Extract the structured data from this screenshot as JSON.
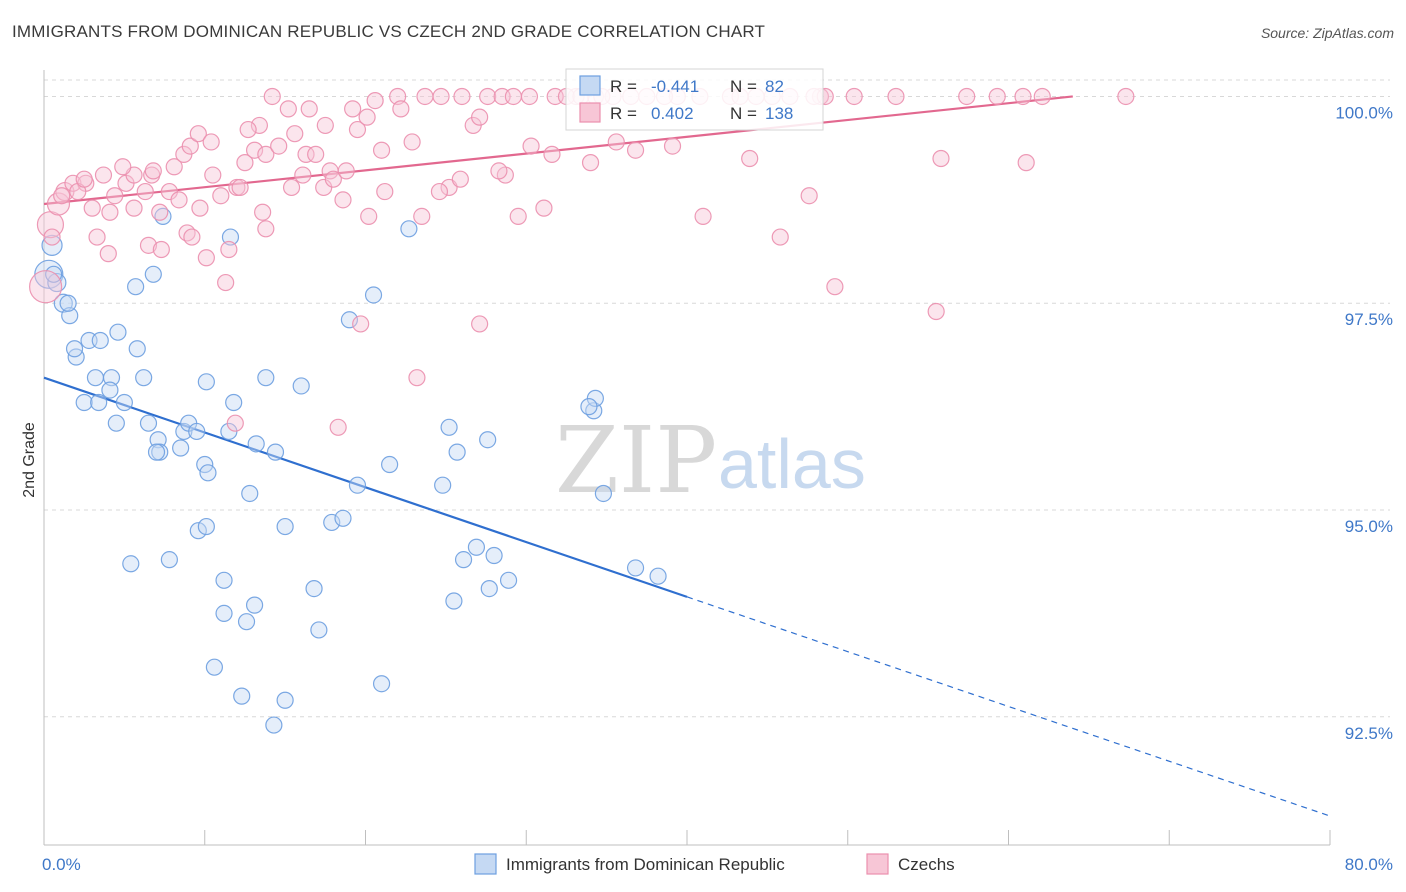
{
  "header": {
    "title": "IMMIGRANTS FROM DOMINICAN REPUBLIC VS CZECH 2ND GRADE CORRELATION CHART",
    "source": "Source: ZipAtlas.com"
  },
  "watermark": {
    "zip": "ZIP",
    "atlas": "atlas"
  },
  "chart_data": {
    "type": "scatter",
    "title": "IMMIGRANTS FROM DOMINICAN REPUBLIC VS CZECH 2ND GRADE CORRELATION CHART",
    "xlabel": "",
    "ylabel": "2nd Grade",
    "xlim": [
      0,
      80
    ],
    "ylim": [
      90.95,
      100.32
    ],
    "x_tick_labels": [
      {
        "value": 0,
        "label": "0.0%"
      },
      {
        "value": 80,
        "label": "80.0%"
      }
    ],
    "y_tick_labels": [
      {
        "value": 100,
        "label": "100.0%"
      },
      {
        "value": 97.5,
        "label": "97.5%"
      },
      {
        "value": 95,
        "label": "95.0%"
      },
      {
        "value": 92.5,
        "label": "92.5%"
      }
    ],
    "grid": true,
    "legend_position": "bottom",
    "stats_box_position": "top-center",
    "series": [
      {
        "name": "Immigrants from Dominican Republic",
        "color": "#6d9fe0",
        "fill": "#c5d9f3",
        "trend_color": "#2f6fcf",
        "R": "-0.441",
        "N": "82",
        "R_label": "R =",
        "N_label": "N =",
        "trend": {
          "x0": 0,
          "y0": 96.6,
          "x1": 40,
          "y1": 93.95,
          "dashed_to_x": 80,
          "dashed_to_y": 91.3
        },
        "points": [
          [
            0.3,
            97.85,
            14
          ],
          [
            0.5,
            98.2,
            10
          ],
          [
            0.8,
            97.75,
            9
          ],
          [
            1.2,
            97.5,
            9
          ],
          [
            1.6,
            97.35,
            8
          ],
          [
            2.8,
            97.05,
            8
          ],
          [
            3.5,
            97.05,
            8
          ],
          [
            4.6,
            97.15,
            8
          ],
          [
            5.8,
            96.95,
            8
          ],
          [
            6.2,
            96.6,
            8
          ],
          [
            3.2,
            96.6,
            8
          ],
          [
            4.2,
            96.6,
            8
          ],
          [
            5.0,
            96.3,
            8
          ],
          [
            2.5,
            96.3,
            8
          ],
          [
            3.4,
            96.3,
            8
          ],
          [
            4.5,
            96.05,
            8
          ],
          [
            6.5,
            96.05,
            8
          ],
          [
            7.1,
            95.85,
            8
          ],
          [
            7.2,
            95.7,
            8
          ],
          [
            8.5,
            95.75,
            8
          ],
          [
            8.7,
            95.95,
            8
          ],
          [
            9.0,
            96.05,
            8
          ],
          [
            10.1,
            96.55,
            8
          ],
          [
            11.8,
            96.3,
            8
          ],
          [
            13.8,
            96.6,
            8
          ],
          [
            16.0,
            96.5,
            8
          ],
          [
            9.5,
            95.95,
            8
          ],
          [
            10.0,
            95.55,
            8
          ],
          [
            10.2,
            95.45,
            8
          ],
          [
            11.5,
            95.95,
            8
          ],
          [
            13.2,
            95.8,
            8
          ],
          [
            14.4,
            95.7,
            8
          ],
          [
            12.8,
            95.2,
            8
          ],
          [
            19.5,
            95.3,
            8
          ],
          [
            21.5,
            95.55,
            8
          ],
          [
            25.2,
            96.0,
            8
          ],
          [
            25.7,
            95.7,
            8
          ],
          [
            27.6,
            95.85,
            8
          ],
          [
            24.8,
            95.3,
            8
          ],
          [
            34.2,
            96.2,
            8
          ],
          [
            34.3,
            96.35,
            8
          ],
          [
            34.8,
            95.2,
            8
          ],
          [
            5.4,
            94.35,
            8
          ],
          [
            7.8,
            94.4,
            8
          ],
          [
            9.6,
            94.75,
            8
          ],
          [
            10.1,
            94.8,
            8
          ],
          [
            11.2,
            94.15,
            8
          ],
          [
            15.0,
            94.8,
            8
          ],
          [
            16.8,
            94.05,
            8
          ],
          [
            17.9,
            94.85,
            8
          ],
          [
            18.6,
            94.9,
            8
          ],
          [
            26.1,
            94.4,
            8
          ],
          [
            26.9,
            94.55,
            8
          ],
          [
            28.0,
            94.45,
            8
          ],
          [
            28.9,
            94.15,
            8
          ],
          [
            27.7,
            94.05,
            8
          ],
          [
            25.5,
            93.9,
            8
          ],
          [
            11.2,
            93.75,
            8
          ],
          [
            12.6,
            93.65,
            8
          ],
          [
            13.1,
            93.85,
            8
          ],
          [
            17.1,
            93.55,
            8
          ],
          [
            10.6,
            93.1,
            8
          ],
          [
            12.3,
            92.75,
            8
          ],
          [
            15.0,
            92.7,
            8
          ],
          [
            21.0,
            92.9,
            8
          ],
          [
            14.3,
            92.4,
            8
          ],
          [
            36.8,
            94.3,
            8
          ],
          [
            38.2,
            94.2,
            8
          ],
          [
            0.6,
            97.85,
            8
          ],
          [
            1.5,
            97.5,
            8
          ],
          [
            6.8,
            97.85,
            8
          ],
          [
            7.4,
            98.55,
            8
          ],
          [
            11.6,
            98.3,
            8
          ],
          [
            19.0,
            97.3,
            8
          ],
          [
            20.5,
            97.6,
            8
          ],
          [
            22.7,
            98.4,
            8
          ],
          [
            5.7,
            97.7,
            8
          ],
          [
            2.0,
            96.85,
            8
          ],
          [
            1.9,
            96.95,
            8
          ],
          [
            4.1,
            96.45,
            8
          ],
          [
            7.0,
            95.7,
            8
          ],
          [
            33.9,
            96.25,
            8
          ]
        ]
      },
      {
        "name": "Czechs",
        "color": "#eb8fae",
        "fill": "#f7c6d6",
        "trend_color": "#e2688f",
        "R": "0.402",
        "N": "138",
        "R_label": "R =",
        "N_label": "N =",
        "trend": {
          "x0": 0,
          "y0": 98.7,
          "x1": 64,
          "y1": 100.0
        },
        "points": [
          [
            0.1,
            97.7,
            16
          ],
          [
            0.4,
            98.45,
            13
          ],
          [
            0.9,
            98.7,
            11
          ],
          [
            1.3,
            98.85,
            9
          ],
          [
            1.8,
            98.95,
            8
          ],
          [
            2.6,
            98.95,
            8
          ],
          [
            3.7,
            99.05,
            8
          ],
          [
            4.4,
            98.8,
            8
          ],
          [
            4.1,
            98.6,
            8
          ],
          [
            3.3,
            98.3,
            8
          ],
          [
            4.0,
            98.1,
            8
          ],
          [
            5.1,
            98.95,
            8
          ],
          [
            5.6,
            99.05,
            8
          ],
          [
            6.3,
            98.85,
            8
          ],
          [
            6.7,
            99.05,
            8
          ],
          [
            6.5,
            98.2,
            8
          ],
          [
            7.2,
            98.6,
            8
          ],
          [
            7.8,
            98.85,
            8
          ],
          [
            8.1,
            99.15,
            8
          ],
          [
            8.7,
            99.3,
            8
          ],
          [
            9.1,
            99.4,
            8
          ],
          [
            9.6,
            99.55,
            8
          ],
          [
            8.9,
            98.35,
            8
          ],
          [
            10.1,
            98.05,
            8
          ],
          [
            10.5,
            99.05,
            8
          ],
          [
            11.0,
            98.8,
            8
          ],
          [
            11.5,
            98.15,
            8
          ],
          [
            12.0,
            98.9,
            8
          ],
          [
            12.5,
            99.2,
            8
          ],
          [
            13.1,
            99.35,
            8
          ],
          [
            13.4,
            99.65,
            8
          ],
          [
            13.8,
            99.3,
            8
          ],
          [
            14.6,
            99.4,
            8
          ],
          [
            15.4,
            98.9,
            8
          ],
          [
            15.6,
            99.55,
            8
          ],
          [
            16.3,
            99.3,
            8
          ],
          [
            16.9,
            99.3,
            8
          ],
          [
            17.4,
            98.9,
            8
          ],
          [
            17.8,
            99.1,
            8
          ],
          [
            18.0,
            99.0,
            8
          ],
          [
            18.8,
            99.1,
            8
          ],
          [
            19.5,
            99.6,
            8
          ],
          [
            20.1,
            99.75,
            8
          ],
          [
            20.6,
            99.95,
            8
          ],
          [
            21.0,
            99.35,
            8
          ],
          [
            22.0,
            100.0,
            8
          ],
          [
            22.9,
            99.45,
            8
          ],
          [
            23.7,
            100.0,
            8
          ],
          [
            24.7,
            100.0,
            8
          ],
          [
            25.2,
            98.9,
            8
          ],
          [
            25.9,
            99.0,
            8
          ],
          [
            26.7,
            99.65,
            8
          ],
          [
            27.1,
            99.75,
            8
          ],
          [
            27.6,
            100.0,
            8
          ],
          [
            28.5,
            100.0,
            8
          ],
          [
            28.7,
            99.05,
            8
          ],
          [
            29.2,
            100.0,
            8
          ],
          [
            29.5,
            98.55,
            8
          ],
          [
            30.3,
            99.4,
            8
          ],
          [
            31.1,
            98.65,
            8
          ],
          [
            31.8,
            100.0,
            8
          ],
          [
            33.1,
            100.0,
            8
          ],
          [
            34.0,
            99.2,
            8
          ],
          [
            34.3,
            100.0,
            8
          ],
          [
            35.4,
            100.0,
            8
          ],
          [
            36.8,
            99.35,
            8
          ],
          [
            37.5,
            100.0,
            8
          ],
          [
            39.4,
            100.0,
            8
          ],
          [
            40.8,
            100.0,
            8
          ],
          [
            41.0,
            98.55,
            8
          ],
          [
            42.7,
            100.0,
            8
          ],
          [
            43.9,
            99.25,
            8
          ],
          [
            45.8,
            98.3,
            8
          ],
          [
            46.4,
            100.0,
            8
          ],
          [
            47.6,
            98.8,
            8
          ],
          [
            48.3,
            100.0,
            8
          ],
          [
            49.2,
            97.7,
            8
          ],
          [
            50.4,
            100.0,
            8
          ],
          [
            53.0,
            100.0,
            8
          ],
          [
            55.5,
            97.4,
            8
          ],
          [
            55.8,
            99.25,
            8
          ],
          [
            57.4,
            100.0,
            8
          ],
          [
            59.3,
            100.0,
            8
          ],
          [
            60.9,
            100.0,
            8
          ],
          [
            61.1,
            99.2,
            8
          ],
          [
            62.1,
            100.0,
            8
          ],
          [
            67.3,
            100.0,
            8
          ],
          [
            1.1,
            98.8,
            8
          ],
          [
            2.1,
            98.85,
            8
          ],
          [
            3.0,
            98.65,
            8
          ],
          [
            4.9,
            99.15,
            8
          ],
          [
            6.8,
            99.1,
            8
          ],
          [
            7.3,
            98.15,
            8
          ],
          [
            8.4,
            98.75,
            8
          ],
          [
            9.2,
            98.3,
            8
          ],
          [
            10.4,
            99.45,
            8
          ],
          [
            11.3,
            97.75,
            8
          ],
          [
            12.2,
            98.9,
            8
          ],
          [
            13.6,
            98.6,
            8
          ],
          [
            14.2,
            100.0,
            8
          ],
          [
            15.2,
            99.85,
            8
          ],
          [
            16.1,
            99.05,
            8
          ],
          [
            17.5,
            99.65,
            8
          ],
          [
            18.6,
            98.75,
            8
          ],
          [
            19.2,
            99.85,
            8
          ],
          [
            20.2,
            98.55,
            8
          ],
          [
            21.2,
            98.85,
            8
          ],
          [
            22.2,
            99.85,
            8
          ],
          [
            23.5,
            98.55,
            8
          ],
          [
            24.6,
            98.85,
            8
          ],
          [
            26.0,
            100.0,
            8
          ],
          [
            27.1,
            97.25,
            8
          ],
          [
            28.3,
            99.1,
            8
          ],
          [
            30.2,
            100.0,
            8
          ],
          [
            31.6,
            99.3,
            8
          ],
          [
            32.5,
            100.0,
            8
          ],
          [
            33.4,
            100.0,
            8
          ],
          [
            34.7,
            100.0,
            8
          ],
          [
            35.6,
            99.45,
            8
          ],
          [
            36.5,
            100.0,
            8
          ],
          [
            38.6,
            100.0,
            8
          ],
          [
            39.1,
            99.4,
            8
          ],
          [
            43.3,
            100.0,
            8
          ],
          [
            44.3,
            100.0,
            8
          ],
          [
            45.3,
            100.0,
            8
          ],
          [
            47.9,
            100.0,
            8
          ],
          [
            48.6,
            100.0,
            8
          ],
          [
            11.9,
            96.05,
            8
          ],
          [
            18.3,
            96.0,
            8
          ],
          [
            19.7,
            97.25,
            8
          ],
          [
            23.2,
            96.6,
            8
          ],
          [
            0.5,
            98.3,
            8
          ],
          [
            2.5,
            99.0,
            8
          ],
          [
            5.6,
            98.65,
            8
          ],
          [
            9.7,
            98.65,
            8
          ],
          [
            12.7,
            99.6,
            8
          ],
          [
            13.8,
            98.4,
            8
          ],
          [
            16.5,
            99.85,
            8
          ]
        ]
      }
    ]
  }
}
